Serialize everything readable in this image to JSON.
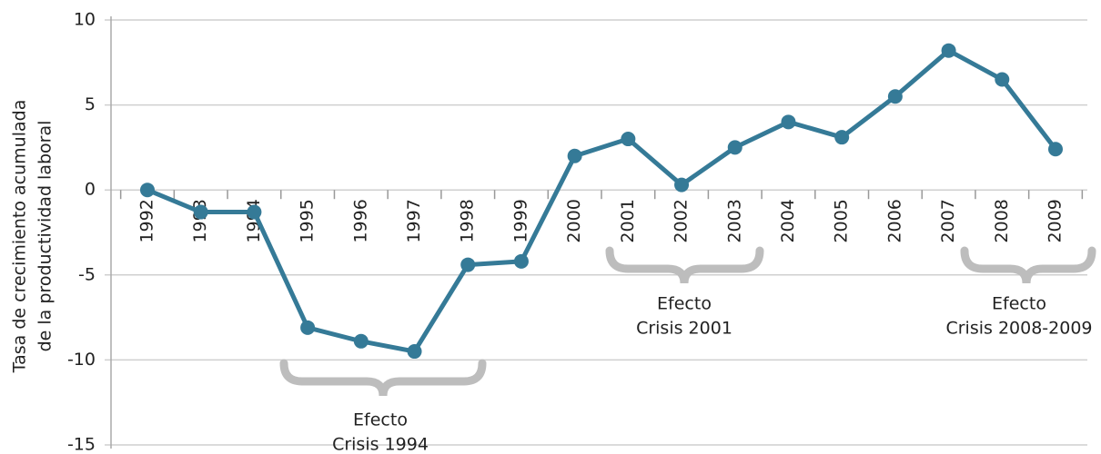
{
  "chart_data": {
    "type": "line",
    "y_label": [
      "Tasa de crecimiento acumulada",
      "de la productividad laboral"
    ],
    "categories": [
      "1992",
      "1993",
      "1994",
      "1995",
      "1996",
      "1997",
      "1998",
      "1999",
      "2000",
      "2001",
      "2002",
      "2003",
      "2004",
      "2005",
      "2006",
      "2007",
      "2008",
      "2009"
    ],
    "series": [
      {
        "name": null,
        "color": "#357a97",
        "values": [
          0,
          -1.3,
          -1.3,
          -8.1,
          -8.9,
          -9.5,
          -4.4,
          -4.2,
          2.0,
          3.0,
          0.3,
          2.5,
          4.0,
          3.1,
          5.5,
          8.2,
          6.5,
          2.4
        ]
      }
    ],
    "ylim": [
      -15,
      10
    ],
    "yticks": [
      -15,
      -10,
      -5,
      0,
      5,
      10
    ],
    "grid": true,
    "annotations": [
      {
        "lines": [
          "Efecto",
          "Crisis 1994"
        ]
      },
      {
        "lines": [
          "Efecto",
          "Crisis 2001"
        ]
      },
      {
        "lines": [
          "Efecto",
          "Crisis 2008-2009"
        ]
      }
    ]
  }
}
